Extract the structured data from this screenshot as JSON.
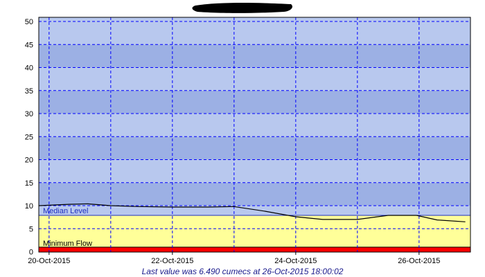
{
  "chart_data": {
    "type": "line",
    "title": "",
    "xlabel": "",
    "ylabel": "",
    "ylim": [
      0,
      50
    ],
    "yticks": [
      "0",
      "5",
      "10",
      "15",
      "20",
      "25",
      "30",
      "35",
      "40",
      "45",
      "50"
    ],
    "xlim": [
      "2015-10-19T20:00",
      "2015-10-26T20:00"
    ],
    "xticks": [
      {
        "date": "2015-10-20T00:00",
        "label": "20-Oct-2015"
      },
      {
        "date": "2015-10-22T00:00",
        "label": "22-Oct-2015"
      },
      {
        "date": "2015-10-24T00:00",
        "label": "24-Oct-2015"
      },
      {
        "date": "2015-10-26T00:00",
        "label": "26-Oct-2015"
      }
    ],
    "grid": true,
    "bands": [
      {
        "name": "Minimum Flow",
        "from": 0,
        "to": 1,
        "color": "#ff0000"
      },
      {
        "name": "Median Level",
        "from": 1,
        "to": 7.9,
        "color": "#ffff99"
      }
    ],
    "band_colors": {
      "light": "#b8c8ee",
      "dark": "#9cb0e4"
    },
    "series": [
      {
        "color": "#000000",
        "points": [
          [
            "2015-10-19T20:00",
            10.0
          ],
          [
            "2015-10-20T08:00",
            10.3
          ],
          [
            "2015-10-20T15:00",
            10.4
          ],
          [
            "2015-10-21T00:00",
            10.0
          ],
          [
            "2015-10-21T11:00",
            9.8
          ],
          [
            "2015-10-22T00:00",
            9.7
          ],
          [
            "2015-10-22T14:00",
            9.7
          ],
          [
            "2015-10-23T00:00",
            9.8
          ],
          [
            "2015-10-23T12:00",
            8.8
          ],
          [
            "2015-10-24T00:00",
            7.6
          ],
          [
            "2015-10-24T10:30",
            7.0
          ],
          [
            "2015-10-25T00:00",
            7.0
          ],
          [
            "2015-10-25T12:00",
            7.9
          ],
          [
            "2015-10-25T23:00",
            7.9
          ],
          [
            "2015-10-26T07:00",
            6.9
          ],
          [
            "2015-10-26T18:00",
            6.49
          ]
        ]
      }
    ],
    "annotations": {
      "median_label": "Median Level",
      "minimum_label": "Minimum Flow"
    },
    "footer": "Last value was 6.490 cumecs at 26-Oct-2015 18:00:02"
  }
}
